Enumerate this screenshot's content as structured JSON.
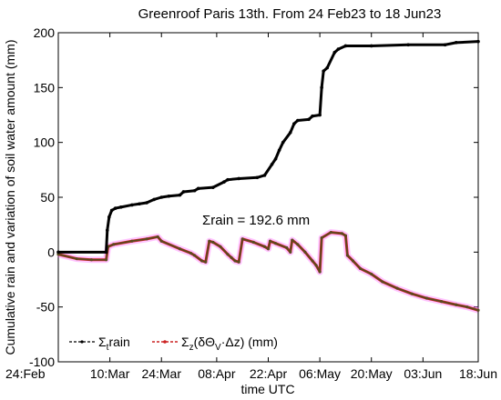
{
  "chart_data": {
    "type": "line",
    "title": "Greenroof Paris 13th. From 24 Feb23 to 18 Jun23",
    "xlabel": "time UTC",
    "ylabel": "Cumulative rain and variation of soil water amount (mm)",
    "x_tick_labels": [
      "24:Feb",
      "10:Mar",
      "24:Mar",
      "08:Apr",
      "22:Apr",
      "06:May",
      "20:May",
      "03:Jun",
      "18:Jun"
    ],
    "x_tick_values": [
      0,
      14,
      28,
      43,
      57,
      71,
      85,
      99,
      114
    ],
    "xlim": [
      0,
      114
    ],
    "ylim": [
      -100,
      200
    ],
    "y_ticks": [
      -100,
      -50,
      0,
      50,
      100,
      150,
      200
    ],
    "y_tick_labels": [
      "-100",
      "-50",
      "0",
      "50",
      "100",
      "150",
      "200"
    ],
    "grid": false,
    "legend_position": "bottom-left",
    "annotation": "Σrain = 192.6 mm",
    "series": [
      {
        "name": "Σtrain",
        "legend_main": "Σ",
        "legend_sub": "t",
        "legend_rest": "rain",
        "color": "#000000",
        "points": [
          [
            0,
            0
          ],
          [
            13,
            0
          ],
          [
            13.3,
            20
          ],
          [
            13.8,
            32
          ],
          [
            14.5,
            38
          ],
          [
            15.5,
            40
          ],
          [
            17,
            41
          ],
          [
            20,
            43
          ],
          [
            22,
            44
          ],
          [
            24,
            45
          ],
          [
            26,
            48
          ],
          [
            28,
            50
          ],
          [
            30,
            51
          ],
          [
            33,
            52
          ],
          [
            34,
            55
          ],
          [
            37,
            56
          ],
          [
            38,
            58
          ],
          [
            42,
            59
          ],
          [
            45,
            64
          ],
          [
            46,
            66
          ],
          [
            49,
            67
          ],
          [
            54,
            68
          ],
          [
            56,
            70
          ],
          [
            58,
            80
          ],
          [
            59,
            85
          ],
          [
            60,
            93
          ],
          [
            61,
            100
          ],
          [
            63,
            109
          ],
          [
            64,
            117
          ],
          [
            65,
            120
          ],
          [
            68,
            121
          ],
          [
            69,
            124
          ],
          [
            71,
            125
          ],
          [
            71.5,
            150
          ],
          [
            72,
            165
          ],
          [
            73,
            168
          ],
          [
            75,
            182
          ],
          [
            76,
            185
          ],
          [
            78,
            188
          ],
          [
            85,
            188
          ],
          [
            95,
            189
          ],
          [
            105,
            189
          ],
          [
            108,
            191
          ],
          [
            114,
            192
          ]
        ]
      },
      {
        "name": "Σz(δΘV·Δz) (mm)",
        "legend_main": "Σ",
        "legend_sub": "z",
        "legend_rest": "(δΘ",
        "legend_sub2": "V",
        "legend_rest2": "·Δz) (mm)",
        "color": "#5a4a1e",
        "halo_color": "#ff55ff",
        "points": [
          [
            0,
            -2
          ],
          [
            5,
            -6
          ],
          [
            9,
            -7
          ],
          [
            13,
            -7
          ],
          [
            13.5,
            5
          ],
          [
            15,
            7
          ],
          [
            20,
            10
          ],
          [
            24,
            12
          ],
          [
            27,
            14
          ],
          [
            28,
            10
          ],
          [
            33,
            3
          ],
          [
            36,
            -1
          ],
          [
            37,
            -3
          ],
          [
            39,
            -8
          ],
          [
            40,
            -9
          ],
          [
            41,
            10
          ],
          [
            42,
            9
          ],
          [
            44,
            5
          ],
          [
            46,
            -2
          ],
          [
            47,
            -5
          ],
          [
            48,
            -8
          ],
          [
            49,
            -9
          ],
          [
            50,
            12
          ],
          [
            53,
            9
          ],
          [
            56,
            5
          ],
          [
            57,
            3
          ],
          [
            57.5,
            10
          ],
          [
            59,
            8
          ],
          [
            62,
            4
          ],
          [
            63,
            0
          ],
          [
            63.5,
            11
          ],
          [
            65,
            7
          ],
          [
            67,
            0
          ],
          [
            69,
            -8
          ],
          [
            70,
            -12
          ],
          [
            71,
            -18
          ],
          [
            71.5,
            13
          ],
          [
            74,
            18
          ],
          [
            77,
            17
          ],
          [
            78,
            15
          ],
          [
            78.5,
            -3
          ],
          [
            80,
            -8
          ],
          [
            82,
            -15
          ],
          [
            85,
            -20
          ],
          [
            88,
            -27
          ],
          [
            92,
            -33
          ],
          [
            96,
            -38
          ],
          [
            100,
            -42
          ],
          [
            104,
            -45
          ],
          [
            108,
            -48
          ],
          [
            111,
            -50
          ],
          [
            114,
            -53
          ]
        ]
      }
    ]
  }
}
